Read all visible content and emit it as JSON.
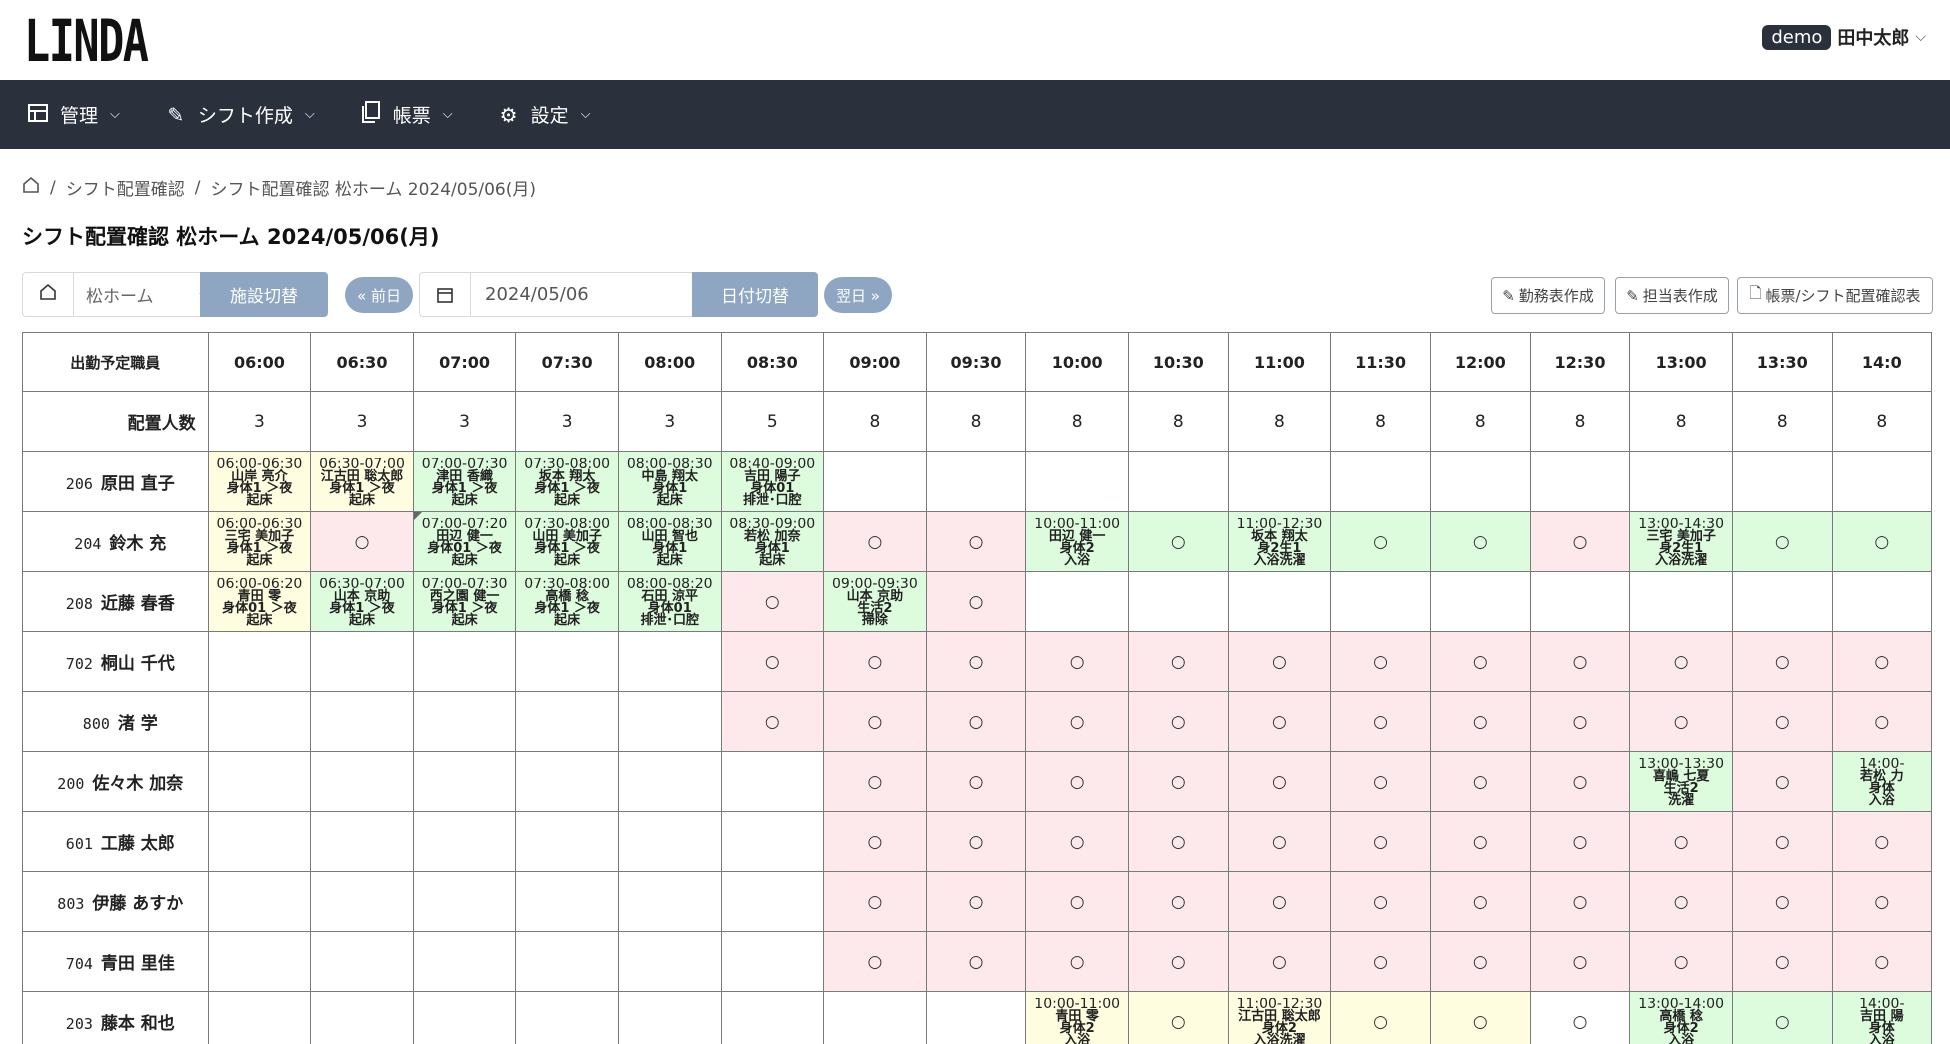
{
  "app": {
    "logo": "LINDA",
    "user_badge": "demo",
    "user_name": "田中太郎"
  },
  "nav": [
    {
      "icon": "grid-icon",
      "label": "管理"
    },
    {
      "icon": "pencil-icon",
      "label": "シフト作成"
    },
    {
      "icon": "document-icon",
      "label": "帳票"
    },
    {
      "icon": "gear-icon",
      "label": "設定"
    }
  ],
  "breadcrumb": {
    "item1": "シフト配置確認",
    "item2": "シフト配置確認 松ホーム 2024/05/06(月)"
  },
  "page_title": "シフト配置確認 松ホーム 2024/05/06(月)",
  "toolbar": {
    "facility": "松ホーム",
    "facility_switch": "施設切替",
    "prev_day": "« 前日",
    "date": "2024/05/06",
    "date_switch": "日付切替",
    "next_day": "翌日 »",
    "duty_button": "勤務表作成",
    "assign_button": "担当表作成",
    "report_button": "帳票/シフト配置確認表"
  },
  "grid": {
    "staff_header": "出勤予定職員",
    "count_label": "配置人数",
    "times": [
      "06:00",
      "06:30",
      "07:00",
      "07:30",
      "08:00",
      "08:30",
      "09:00",
      "09:30",
      "10:00",
      "10:30",
      "11:00",
      "11:30",
      "12:00",
      "12:30",
      "13:00",
      "13:30",
      "14:0"
    ],
    "counts": [
      "3",
      "3",
      "3",
      "3",
      "3",
      "5",
      "8",
      "8",
      "8",
      "8",
      "8",
      "8",
      "8",
      "8",
      "8",
      "8",
      "8"
    ],
    "rows": [
      {
        "num": "206",
        "name": "原田 直子",
        "cells": [
          {
            "c": "y",
            "t": [
              "06:00-06:30",
              "山岸 亮介",
              "身体1 ＞夜",
              "起床"
            ]
          },
          {
            "c": "y",
            "t": [
              "06:30-07:00",
              "江古田 聡太郎",
              "身体1 ＞夜",
              "起床"
            ]
          },
          {
            "c": "g",
            "t": [
              "07:00-07:30",
              "津田 香織",
              "身体1 ＞夜",
              "起床"
            ]
          },
          {
            "c": "g",
            "t": [
              "07:30-08:00",
              "坂本 翔太",
              "身体1 ＞夜",
              "起床"
            ]
          },
          {
            "c": "g",
            "t": [
              "08:00-08:30",
              "中島 翔太",
              "身体1",
              "起床"
            ]
          },
          {
            "c": "g",
            "t": [
              "08:40-09:00",
              "吉田 陽子",
              "身体01",
              "排泄･口腔"
            ]
          },
          {
            "c": "w"
          },
          {
            "c": "w"
          },
          {
            "c": "w"
          },
          {
            "c": "w"
          },
          {
            "c": "w"
          },
          {
            "c": "w"
          },
          {
            "c": "w"
          },
          {
            "c": "w"
          },
          {
            "c": "w"
          },
          {
            "c": "w"
          },
          {
            "c": "w"
          }
        ]
      },
      {
        "num": "204",
        "name": "鈴木 充",
        "cells": [
          {
            "c": "y",
            "t": [
              "06:00-06:30",
              "三宅 美加子",
              "身体1 ＞夜",
              "起床"
            ]
          },
          {
            "c": "p",
            "o": "○"
          },
          {
            "c": "g",
            "t": [
              "07:00-07:20",
              "田辺 健一",
              "身体01 ＞夜",
              "起床"
            ],
            "mark": true
          },
          {
            "c": "g",
            "t": [
              "07:30-08:00",
              "山田 美加子",
              "身体1 ＞夜",
              "起床"
            ]
          },
          {
            "c": "g",
            "t": [
              "08:00-08:30",
              "山田 智也",
              "身体1",
              "起床"
            ]
          },
          {
            "c": "g",
            "t": [
              "08:30-09:00",
              "若松 加奈",
              "身体1",
              "起床"
            ]
          },
          {
            "c": "p",
            "o": "○"
          },
          {
            "c": "p",
            "o": "○"
          },
          {
            "c": "g",
            "t": [
              "10:00-11:00",
              "田辺 健一",
              "身体2",
              "入浴"
            ]
          },
          {
            "c": "g",
            "o": "○"
          },
          {
            "c": "g",
            "t": [
              "11:00-12:30",
              "坂本 翔太",
              "身2生1",
              "入浴洗濯"
            ]
          },
          {
            "c": "g",
            "o": "○"
          },
          {
            "c": "g",
            "o": "○"
          },
          {
            "c": "p",
            "o": "○"
          },
          {
            "c": "g",
            "t": [
              "13:00-14:30",
              "三宅 美加子",
              "身2生1",
              "入浴洗濯"
            ]
          },
          {
            "c": "g",
            "o": "○"
          },
          {
            "c": "g",
            "o": "○"
          }
        ]
      },
      {
        "num": "208",
        "name": "近藤 春香",
        "cells": [
          {
            "c": "y",
            "t": [
              "06:00-06:20",
              "青田 零",
              "身体01 ＞夜",
              "起床"
            ]
          },
          {
            "c": "g",
            "t": [
              "06:30-07:00",
              "山本 京助",
              "身体1 ＞夜",
              "起床"
            ]
          },
          {
            "c": "g",
            "t": [
              "07:00-07:30",
              "西之園 健一",
              "身体1 ＞夜",
              "起床"
            ]
          },
          {
            "c": "g",
            "t": [
              "07:30-08:00",
              "高橋 稔",
              "身体1 ＞夜",
              "起床"
            ]
          },
          {
            "c": "g",
            "t": [
              "08:00-08:20",
              "石田 涼平",
              "身体01",
              "排泄･口腔"
            ]
          },
          {
            "c": "p",
            "o": "○"
          },
          {
            "c": "g",
            "t": [
              "09:00-09:30",
              "山本 京助",
              "生活2",
              "掃除"
            ]
          },
          {
            "c": "p",
            "o": "○"
          },
          {
            "c": "w"
          },
          {
            "c": "w"
          },
          {
            "c": "w"
          },
          {
            "c": "w"
          },
          {
            "c": "w"
          },
          {
            "c": "w"
          },
          {
            "c": "w"
          },
          {
            "c": "w"
          },
          {
            "c": "w"
          }
        ]
      },
      {
        "num": "702",
        "name": "桐山 千代",
        "cells": [
          {
            "c": "w"
          },
          {
            "c": "w"
          },
          {
            "c": "w"
          },
          {
            "c": "w"
          },
          {
            "c": "w"
          },
          {
            "c": "p",
            "o": "○"
          },
          {
            "c": "p",
            "o": "○"
          },
          {
            "c": "p",
            "o": "○"
          },
          {
            "c": "p",
            "o": "○"
          },
          {
            "c": "p",
            "o": "○"
          },
          {
            "c": "p",
            "o": "○"
          },
          {
            "c": "p",
            "o": "○"
          },
          {
            "c": "p",
            "o": "○"
          },
          {
            "c": "p",
            "o": "○"
          },
          {
            "c": "p",
            "o": "○"
          },
          {
            "c": "p",
            "o": "○"
          },
          {
            "c": "p",
            "o": "○"
          }
        ]
      },
      {
        "num": "800",
        "name": "渚 学",
        "cells": [
          {
            "c": "w"
          },
          {
            "c": "w"
          },
          {
            "c": "w"
          },
          {
            "c": "w"
          },
          {
            "c": "w"
          },
          {
            "c": "p",
            "o": "○"
          },
          {
            "c": "p",
            "o": "○"
          },
          {
            "c": "p",
            "o": "○"
          },
          {
            "c": "p",
            "o": "○"
          },
          {
            "c": "p",
            "o": "○"
          },
          {
            "c": "p",
            "o": "○"
          },
          {
            "c": "p",
            "o": "○"
          },
          {
            "c": "p",
            "o": "○"
          },
          {
            "c": "p",
            "o": "○"
          },
          {
            "c": "p",
            "o": "○"
          },
          {
            "c": "p",
            "o": "○"
          },
          {
            "c": "p",
            "o": "○"
          }
        ]
      },
      {
        "num": "200",
        "name": "佐々木 加奈",
        "cells": [
          {
            "c": "w"
          },
          {
            "c": "w"
          },
          {
            "c": "w"
          },
          {
            "c": "w"
          },
          {
            "c": "w"
          },
          {
            "c": "w"
          },
          {
            "c": "p",
            "o": "○"
          },
          {
            "c": "p",
            "o": "○"
          },
          {
            "c": "p",
            "o": "○"
          },
          {
            "c": "p",
            "o": "○"
          },
          {
            "c": "p",
            "o": "○"
          },
          {
            "c": "p",
            "o": "○"
          },
          {
            "c": "p",
            "o": "○"
          },
          {
            "c": "p",
            "o": "○"
          },
          {
            "c": "g",
            "t": [
              "13:00-13:30",
              "喜嶋 七夏",
              "生活2",
              "洗濯"
            ]
          },
          {
            "c": "p",
            "o": "○"
          },
          {
            "c": "g",
            "t": [
              "14:00-",
              "若松 力",
              "身体",
              "入浴"
            ]
          }
        ]
      },
      {
        "num": "601",
        "name": "工藤 太郎",
        "cells": [
          {
            "c": "w"
          },
          {
            "c": "w"
          },
          {
            "c": "w"
          },
          {
            "c": "w"
          },
          {
            "c": "w"
          },
          {
            "c": "w"
          },
          {
            "c": "p",
            "o": "○"
          },
          {
            "c": "p",
            "o": "○"
          },
          {
            "c": "p",
            "o": "○"
          },
          {
            "c": "p",
            "o": "○"
          },
          {
            "c": "p",
            "o": "○"
          },
          {
            "c": "p",
            "o": "○"
          },
          {
            "c": "p",
            "o": "○"
          },
          {
            "c": "p",
            "o": "○"
          },
          {
            "c": "p",
            "o": "○"
          },
          {
            "c": "p",
            "o": "○"
          },
          {
            "c": "p",
            "o": "○"
          }
        ]
      },
      {
        "num": "803",
        "name": "伊藤 あすか",
        "cells": [
          {
            "c": "w"
          },
          {
            "c": "w"
          },
          {
            "c": "w"
          },
          {
            "c": "w"
          },
          {
            "c": "w"
          },
          {
            "c": "w"
          },
          {
            "c": "p",
            "o": "○"
          },
          {
            "c": "p",
            "o": "○"
          },
          {
            "c": "p",
            "o": "○"
          },
          {
            "c": "p",
            "o": "○"
          },
          {
            "c": "p",
            "o": "○"
          },
          {
            "c": "p",
            "o": "○"
          },
          {
            "c": "p",
            "o": "○"
          },
          {
            "c": "p",
            "o": "○"
          },
          {
            "c": "p",
            "o": "○"
          },
          {
            "c": "p",
            "o": "○"
          },
          {
            "c": "p",
            "o": "○"
          }
        ]
      },
      {
        "num": "704",
        "name": "青田 里佳",
        "cells": [
          {
            "c": "w"
          },
          {
            "c": "w"
          },
          {
            "c": "w"
          },
          {
            "c": "w"
          },
          {
            "c": "w"
          },
          {
            "c": "w"
          },
          {
            "c": "p",
            "o": "○"
          },
          {
            "c": "p",
            "o": "○"
          },
          {
            "c": "p",
            "o": "○"
          },
          {
            "c": "p",
            "o": "○"
          },
          {
            "c": "p",
            "o": "○"
          },
          {
            "c": "p",
            "o": "○"
          },
          {
            "c": "p",
            "o": "○"
          },
          {
            "c": "p",
            "o": "○"
          },
          {
            "c": "p",
            "o": "○"
          },
          {
            "c": "p",
            "o": "○"
          },
          {
            "c": "p",
            "o": "○"
          }
        ]
      },
      {
        "num": "203",
        "name": "藤本 和也",
        "cells": [
          {
            "c": "w"
          },
          {
            "c": "w"
          },
          {
            "c": "w"
          },
          {
            "c": "w"
          },
          {
            "c": "w"
          },
          {
            "c": "w"
          },
          {
            "c": "w"
          },
          {
            "c": "w"
          },
          {
            "c": "y",
            "t": [
              "10:00-11:00",
              "青田 零",
              "身体2",
              "入浴"
            ]
          },
          {
            "c": "y",
            "o": "○"
          },
          {
            "c": "y",
            "t": [
              "11:00-12:30",
              "江古田 聡太郎",
              "身体2",
              "入浴洗濯"
            ]
          },
          {
            "c": "y",
            "o": "○"
          },
          {
            "c": "y",
            "o": "○"
          },
          {
            "c": "w",
            "o": "○"
          },
          {
            "c": "g",
            "t": [
              "13:00-14:00",
              "高橋 稔",
              "身体2",
              "入浴"
            ]
          },
          {
            "c": "g",
            "o": "○"
          },
          {
            "c": "g",
            "t": [
              "14:00-",
              "吉田 陽",
              "身体",
              "入浴"
            ]
          }
        ]
      }
    ]
  }
}
